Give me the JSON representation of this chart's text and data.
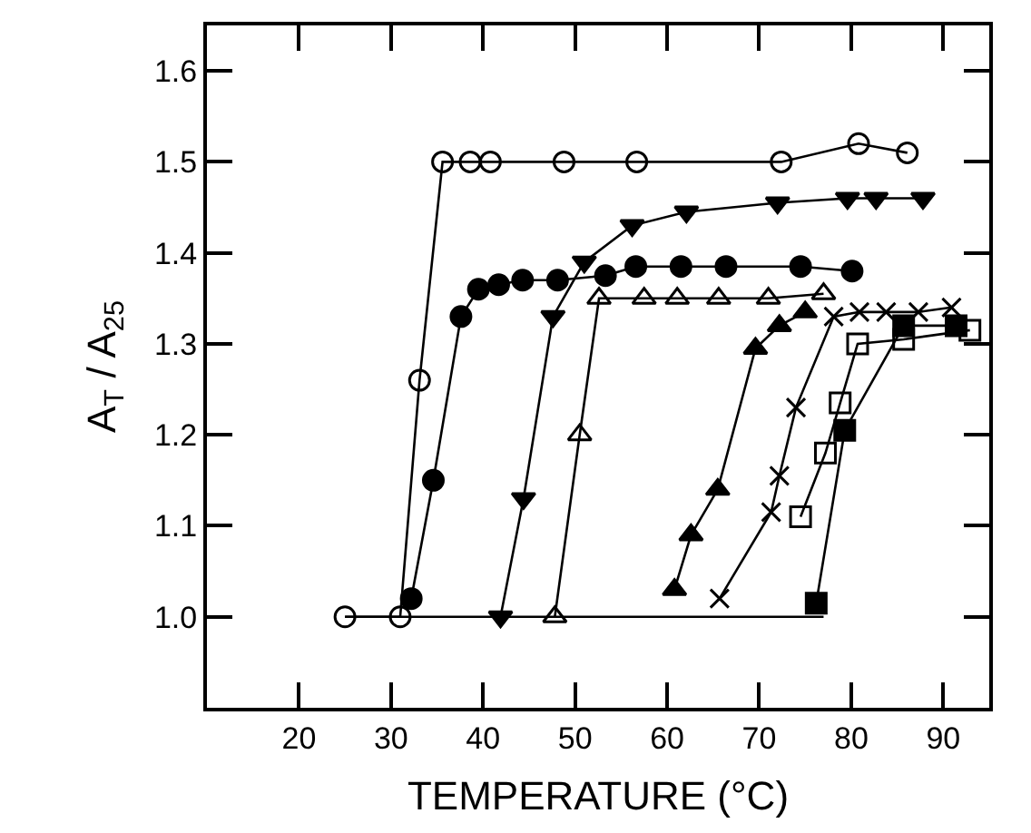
{
  "chart_data": {
    "type": "line",
    "xlabel": "TEMPERATURE (°C)",
    "ylabel": "A$_{T}$ / A$_{25}$",
    "xlim": [
      10,
      95
    ],
    "ylim": [
      0.9,
      1.65
    ],
    "xticks": [
      20,
      30,
      40,
      50,
      60,
      70,
      80,
      90
    ],
    "yticks": [
      {
        "value": 1.0,
        "label": "1.0"
      },
      1.1,
      1.2,
      1.3,
      1.4,
      1.5,
      1.6
    ],
    "series": [
      {
        "color": "#000000",
        "x": [
          25,
          77
        ],
        "values": [
          1.0,
          1.0
        ]
      },
      {
        "color": "#000000",
        "marker": "circle-open",
        "x": [
          25.0,
          31.0,
          33.1,
          35.6,
          38.6,
          40.8,
          48.8,
          56.7,
          72.4,
          80.8,
          86.1
        ],
        "values": [
          1.0,
          1.0,
          1.26,
          1.5,
          1.5,
          1.5,
          1.5,
          1.5,
          1.5,
          1.52,
          1.51
        ]
      },
      {
        "color": "#000000",
        "marker": "circle",
        "x": [
          32.2,
          34.6,
          37.6,
          39.5,
          41.7,
          44.3,
          48.1,
          53.3,
          56.6,
          61.5,
          66.4,
          74.5,
          80.1
        ],
        "values": [
          1.02,
          1.15,
          1.33,
          1.36,
          1.365,
          1.37,
          1.37,
          1.375,
          1.385,
          1.385,
          1.385,
          1.385,
          1.38
        ]
      },
      {
        "color": "#000000",
        "marker": "triangle-down",
        "x": [
          41.9,
          44.4,
          47.6,
          51.0,
          56.2,
          62.1,
          72.0,
          79.6,
          82.7,
          87.8
        ],
        "values": [
          1.0,
          1.13,
          1.33,
          1.39,
          1.43,
          1.445,
          1.455,
          1.46,
          1.46,
          1.46
        ]
      },
      {
        "color": "#000000",
        "marker": "triangle-open",
        "x": [
          47.8,
          50.5,
          52.6,
          57.5,
          61.1,
          65.6,
          71.0,
          77.0
        ],
        "values": [
          1.0,
          1.2,
          1.35,
          1.35,
          1.35,
          1.35,
          1.35,
          1.355
        ]
      },
      {
        "color": "#000000",
        "marker": "triangle",
        "x": [
          60.8,
          62.6,
          65.5,
          69.6,
          72.2,
          75.0
        ],
        "values": [
          1.03,
          1.09,
          1.14,
          1.295,
          1.32,
          1.335
        ]
      },
      {
        "color": "#000000",
        "marker": "cross",
        "x": [
          65.7,
          71.3,
          72.2,
          74.0,
          78.1,
          80.9,
          83.8,
          87.3,
          90.9
        ],
        "values": [
          1.02,
          1.115,
          1.155,
          1.23,
          1.33,
          1.335,
          1.335,
          1.335,
          1.34
        ]
      },
      {
        "color": "#000000",
        "marker": "square-open",
        "x": [
          74.5,
          77.2,
          78.8,
          80.7,
          85.7,
          92.9
        ],
        "values": [
          1.11,
          1.18,
          1.235,
          1.3,
          1.305,
          1.315
        ]
      },
      {
        "color": "#000000",
        "marker": "square",
        "x": [
          76.2,
          79.3,
          85.7,
          91.4
        ],
        "values": [
          1.015,
          1.205,
          1.32,
          1.32
        ]
      }
    ]
  }
}
